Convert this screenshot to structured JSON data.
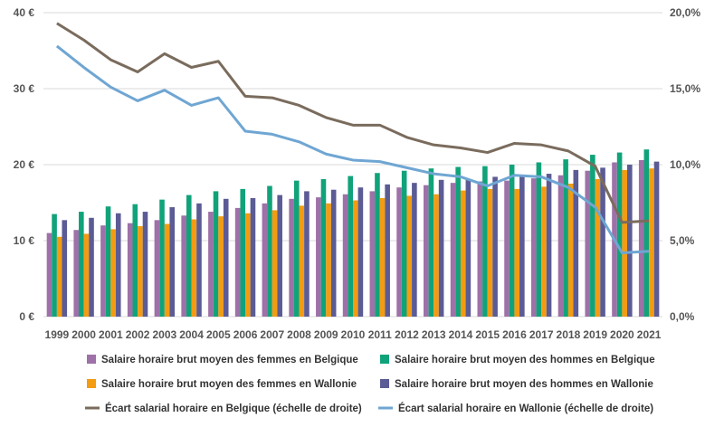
{
  "chart_data": {
    "type": "bar",
    "title": "",
    "xlabel": "",
    "ylabel": "",
    "categories": [
      "1999",
      "2000",
      "2001",
      "2002",
      "2003",
      "2004",
      "2005",
      "2006",
      "2007",
      "2008",
      "2009",
      "2010",
      "2011",
      "2012",
      "2013",
      "2014",
      "2015",
      "2016",
      "2017",
      "2018",
      "2019",
      "2020",
      "2021"
    ],
    "ylim": [
      0,
      40
    ],
    "y_ticks": [
      0,
      10,
      20,
      30,
      40
    ],
    "y_tick_labels": [
      "0 €",
      "10 €",
      "20 €",
      "30 €",
      "40 €"
    ],
    "y2lim": [
      0,
      20
    ],
    "y2_ticks": [
      0,
      5,
      10,
      15,
      20
    ],
    "y2_tick_labels": [
      "0,0%",
      "5,0%",
      "10,0%",
      "15,0%",
      "20,0%"
    ],
    "grid": true,
    "legend_position": "bottom",
    "series": [
      {
        "name": "Salaire horaire brut moyen des femmes en Belgique",
        "kind": "bar",
        "axis": "left",
        "color": "#9e71a8",
        "values": [
          11.0,
          11.4,
          12.0,
          12.3,
          12.7,
          13.3,
          13.8,
          14.3,
          14.9,
          15.5,
          15.7,
          16.1,
          16.5,
          17.0,
          17.3,
          17.6,
          17.8,
          17.9,
          18.2,
          18.6,
          19.2,
          20.3,
          20.6
        ]
      },
      {
        "name": "Salaire horaire brut moyen des hommes en Belgique",
        "kind": "bar",
        "axis": "left",
        "color": "#10a37a",
        "values": [
          13.5,
          13.8,
          14.5,
          14.8,
          15.4,
          16.0,
          16.5,
          16.8,
          17.2,
          17.9,
          18.1,
          18.5,
          18.9,
          19.2,
          19.5,
          19.7,
          19.8,
          20.0,
          20.3,
          20.7,
          21.3,
          21.6,
          22.0
        ]
      },
      {
        "name": "Salaire horaire brut moyen des femmes en Wallonie",
        "kind": "bar",
        "axis": "left",
        "color": "#f39c12",
        "values": [
          10.5,
          10.9,
          11.5,
          11.9,
          12.2,
          12.8,
          13.2,
          13.6,
          14.0,
          14.6,
          14.9,
          15.3,
          15.6,
          15.9,
          16.1,
          16.6,
          16.8,
          16.8,
          17.1,
          17.5,
          18.1,
          19.3,
          19.5
        ]
      },
      {
        "name": "Salaire horaire brut moyen des hommes en Wallonie",
        "kind": "bar",
        "axis": "left",
        "color": "#5b5b95",
        "values": [
          12.7,
          13.0,
          13.6,
          13.8,
          14.4,
          14.9,
          15.5,
          15.6,
          16.0,
          16.5,
          16.7,
          17.0,
          17.4,
          17.6,
          18.0,
          18.1,
          18.4,
          18.6,
          18.8,
          19.3,
          19.6,
          20.0,
          20.4
        ]
      },
      {
        "name": "Écart salarial horaire en Belgique (échelle de droite)",
        "kind": "line",
        "axis": "right",
        "color": "#7a6c5d",
        "values": [
          19.3,
          18.2,
          16.9,
          16.1,
          17.3,
          16.4,
          16.8,
          14.5,
          14.4,
          13.9,
          13.1,
          12.6,
          12.6,
          11.8,
          11.3,
          11.1,
          10.8,
          11.4,
          11.3,
          10.9,
          9.9,
          6.2,
          6.3
        ]
      },
      {
        "name": "Écart salarial horaire en Wallonie (échelle de droite)",
        "kind": "line",
        "axis": "right",
        "color": "#6fa6d3",
        "values": [
          17.8,
          16.4,
          15.1,
          14.2,
          14.9,
          13.9,
          14.4,
          12.2,
          12.0,
          11.5,
          10.7,
          10.3,
          10.2,
          9.8,
          9.4,
          9.2,
          8.6,
          9.3,
          9.2,
          8.5,
          7.2,
          4.2,
          4.3
        ]
      }
    ]
  }
}
